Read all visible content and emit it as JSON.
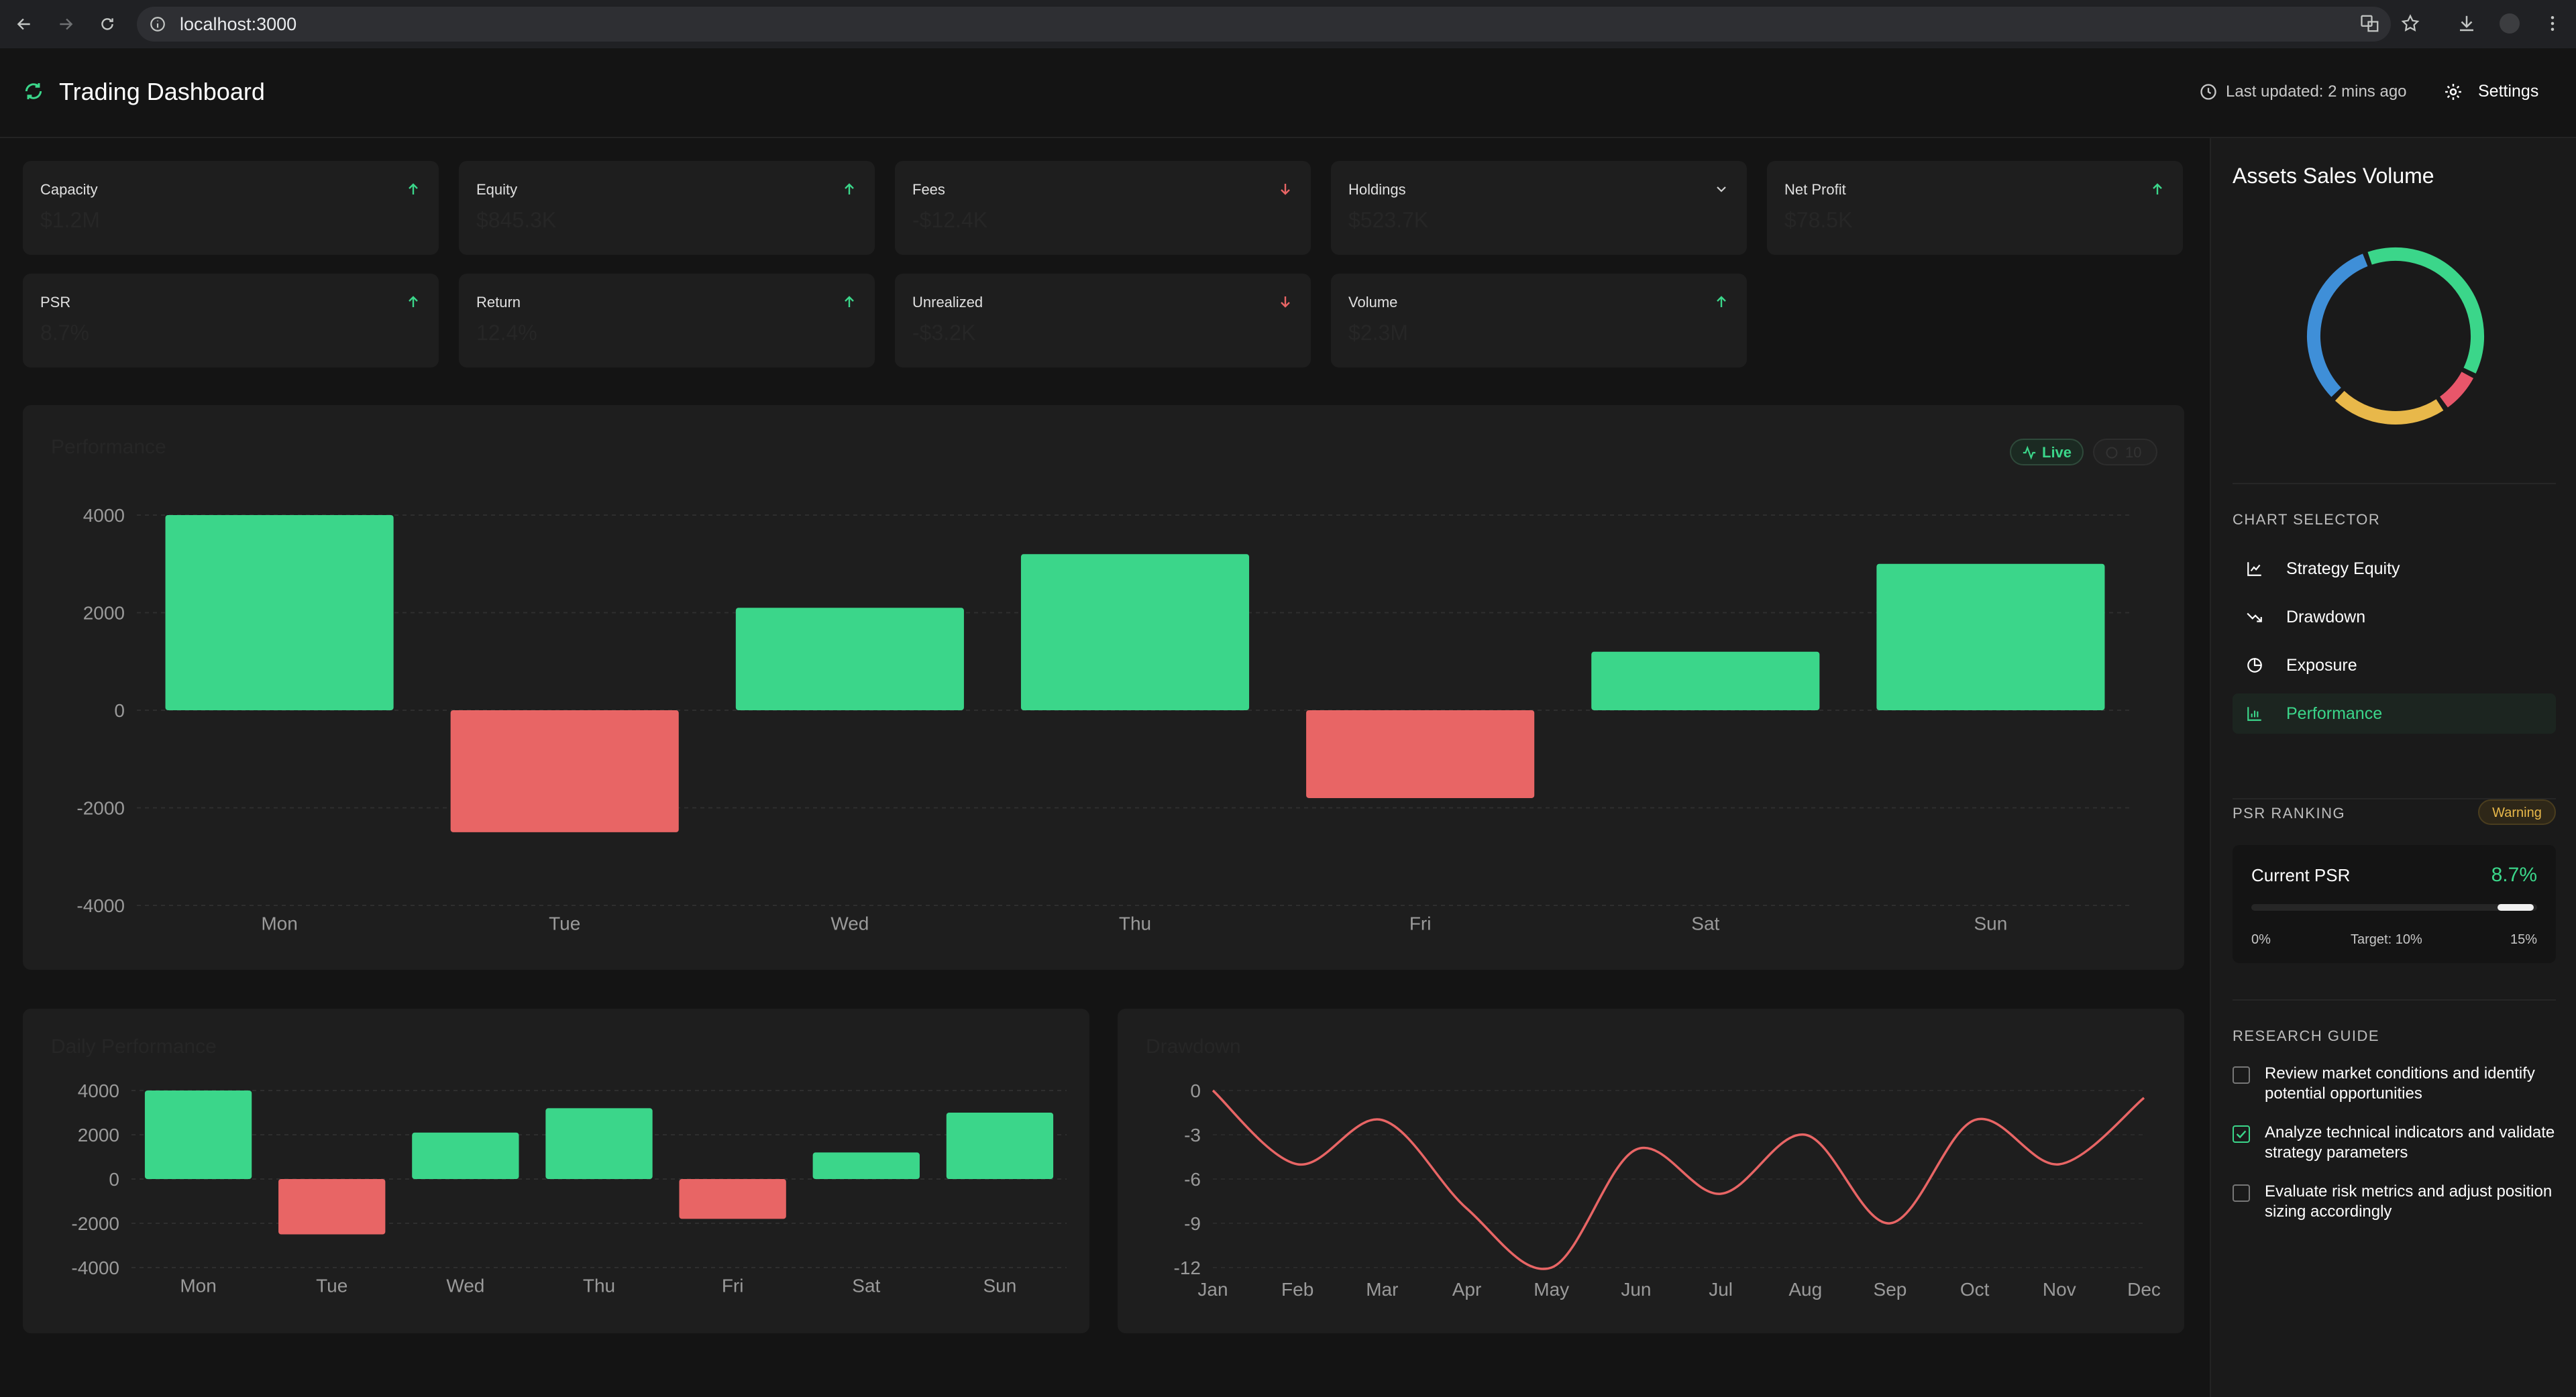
{
  "browser": {
    "url": "localhost:3000"
  },
  "header": {
    "title": "Trading Dashboard",
    "last_updated": "Last updated: 2 mins ago",
    "settings_label": "Settings"
  },
  "stats": [
    {
      "label": "Capacity",
      "value": "$1.2M",
      "trend": "up"
    },
    {
      "label": "Equity",
      "value": "$845.3K",
      "trend": "up"
    },
    {
      "label": "Fees",
      "value": "-$12.4K",
      "trend": "down"
    },
    {
      "label": "Holdings",
      "value": "$523.7K",
      "trend": "chevron"
    },
    {
      "label": "Net Profit",
      "value": "$78.5K",
      "trend": "up"
    },
    {
      "label": "PSR",
      "value": "8.7%",
      "trend": "up"
    },
    {
      "label": "Return",
      "value": "12.4%",
      "trend": "up"
    },
    {
      "label": "Unrealized",
      "value": "-$3.2K",
      "trend": "down"
    },
    {
      "label": "Volume",
      "value": "$2.3M",
      "trend": "up"
    }
  ],
  "performance_panel": {
    "title": "Performance",
    "live_label": "Live",
    "count_label": "10"
  },
  "daily_panel": {
    "title": "Daily Performance"
  },
  "drawdown_panel": {
    "title": "Drawdown"
  },
  "chart_data": [
    {
      "type": "bar",
      "title": "Performance",
      "categories": [
        "Mon",
        "Tue",
        "Wed",
        "Thu",
        "Fri",
        "Sat",
        "Sun"
      ],
      "values": [
        4000,
        -2500,
        2100,
        3200,
        -1800,
        1200,
        3000
      ],
      "ylim": [
        -4000,
        4000
      ],
      "yticks": [
        4000,
        2000,
        0,
        -2000,
        -4000
      ],
      "grid": true
    },
    {
      "type": "bar",
      "title": "Daily Performance",
      "categories": [
        "Mon",
        "Tue",
        "Wed",
        "Thu",
        "Fri",
        "Sat",
        "Sun"
      ],
      "values": [
        4000,
        -2500,
        2100,
        3200,
        -1800,
        1200,
        3000
      ],
      "ylim": [
        -4000,
        4000
      ],
      "yticks": [
        4000,
        2000,
        0,
        -2000,
        -4000
      ],
      "grid": true
    },
    {
      "type": "line",
      "title": "Drawdown",
      "categories": [
        "Jan",
        "Feb",
        "Mar",
        "Apr",
        "May",
        "Jun",
        "Jul",
        "Aug",
        "Sep",
        "Oct",
        "Nov",
        "Dec"
      ],
      "values": [
        0,
        -5,
        -2,
        -8,
        -12,
        -4,
        -7,
        -3,
        -9,
        -2,
        -5,
        -0.5
      ],
      "ylim": [
        -12,
        0
      ],
      "yticks": [
        0,
        -3,
        -6,
        -9,
        -12
      ],
      "grid": true,
      "color": "#e86565"
    },
    {
      "type": "pie",
      "title": "Assets Sales Volume",
      "style": "donut",
      "values": [
        38,
        8,
        22,
        32
      ],
      "colors": [
        "#3bd68a",
        "#e8566a",
        "#e8b84a",
        "#3f8fd8"
      ]
    }
  ],
  "sidebar": {
    "assets_title": "Assets Sales Volume",
    "chart_selector_title": "CHART SELECTOR",
    "selector_items": [
      {
        "label": "Strategy Equity",
        "icon": "line-chart-icon",
        "active": false
      },
      {
        "label": "Drawdown",
        "icon": "trending-down-icon",
        "active": false
      },
      {
        "label": "Exposure",
        "icon": "pie-chart-icon",
        "active": false
      },
      {
        "label": "Performance",
        "icon": "bar-chart-icon",
        "active": true
      }
    ],
    "psr_title": "PSR RANKING",
    "psr_badge": "Warning",
    "psr_label": "Current PSR",
    "psr_value": "8.7%",
    "psr_progress": 0.58,
    "psr_min": "0%",
    "psr_target": "Target: 10%",
    "psr_max": "15%",
    "guide_title": "RESEARCH GUIDE",
    "guide_items": [
      {
        "text": "Review market conditions and identify potential opportunities",
        "checked": false
      },
      {
        "text": "Analyze technical indicators and validate strategy parameters",
        "checked": true
      },
      {
        "text": "Evaluate risk metrics and adjust position sizing accordingly",
        "checked": false
      }
    ]
  },
  "colors": {
    "positive": "#3bd68a",
    "negative": "#e86565",
    "accent": "#3bd68a",
    "warning": "#e8b84a"
  }
}
